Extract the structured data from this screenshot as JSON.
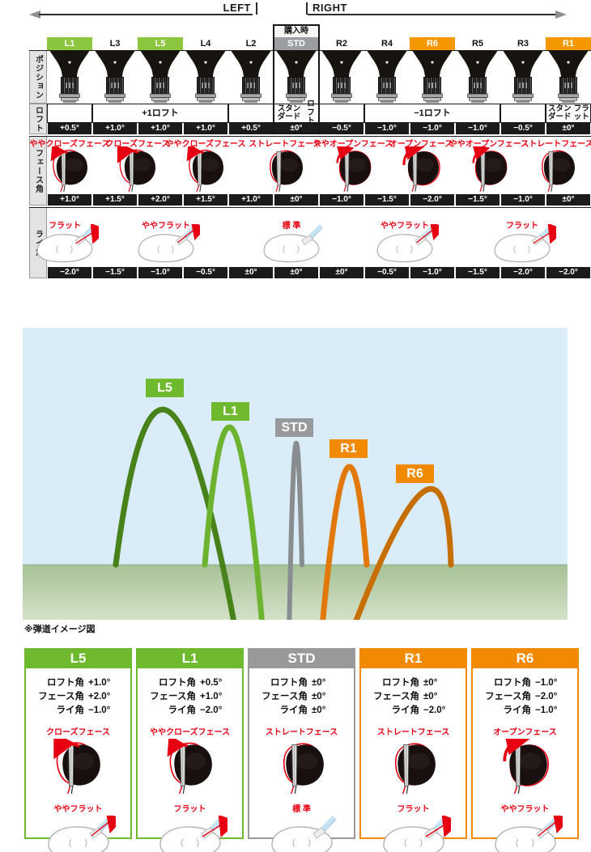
{
  "header": {
    "left_label": "LEFT",
    "right_label": "RIGHT",
    "purchase_label": "購入時"
  },
  "colors": {
    "green_badge": "#8cc63f",
    "orange_badge": "#f39800",
    "gray_badge": "#9b9da0",
    "green": "#6eb92d",
    "orange": "#f18a00",
    "gray": "#97999b",
    "red": "#e60012",
    "value_bar": "#1b1b1b",
    "sky": "#d9ecf7",
    "ground_top": "#a6c197",
    "ground_bottom": "#d4e1c8",
    "arc_green_dark": "#47821b",
    "arc_green": "#6cb32f",
    "arc_gray": "#8a8d90",
    "arc_orange": "#e1790a",
    "arc_orange_dark": "#c76e00"
  },
  "table": {
    "row_labels": {
      "position": "ポジション",
      "loft": "ロフト",
      "face": "フェース角",
      "lie": "ライ角"
    },
    "columns": [
      {
        "id": "L1",
        "highlight": "green",
        "loft": "+0.5°",
        "face": "+1.0°",
        "lie": "−2.0°"
      },
      {
        "id": "L3",
        "highlight": "none",
        "loft": "+1.0°",
        "face": "+1.5°",
        "lie": "−1.5°"
      },
      {
        "id": "L5",
        "highlight": "green",
        "loft": "+1.0°",
        "face": "+2.0°",
        "lie": "−1.0°"
      },
      {
        "id": "L4",
        "highlight": "none",
        "loft": "+1.0°",
        "face": "+1.5°",
        "lie": "−0.5°"
      },
      {
        "id": "L2",
        "highlight": "none",
        "loft": "+0.5°",
        "face": "+1.0°",
        "lie": "±0°"
      },
      {
        "id": "STD",
        "highlight": "gray",
        "loft": "±0°",
        "face": "±0°",
        "lie": "±0°"
      },
      {
        "id": "R2",
        "highlight": "none",
        "loft": "−0.5°",
        "face": "−1.0°",
        "lie": "±0°"
      },
      {
        "id": "R4",
        "highlight": "none",
        "loft": "−1.0°",
        "face": "−1.5°",
        "lie": "−0.5°"
      },
      {
        "id": "R6",
        "highlight": "orange",
        "loft": "−1.0°",
        "face": "−2.0°",
        "lie": "−1.0°"
      },
      {
        "id": "R5",
        "highlight": "none",
        "loft": "−1.0°",
        "face": "−1.5°",
        "lie": "−1.5°"
      },
      {
        "id": "R3",
        "highlight": "none",
        "loft": "−0.5°",
        "face": "−1.0°",
        "lie": "−2.0°"
      },
      {
        "id": "R1",
        "highlight": "orange",
        "loft": "±0°",
        "face": "±0°",
        "lie": "−2.0°"
      }
    ],
    "loft_groups": [
      {
        "label": "",
        "span": 1
      },
      {
        "label": "+1ロフト",
        "span": 3
      },
      {
        "label": "",
        "span": 1
      },
      {
        "label": "スタンダード\nロフト",
        "span": 1
      },
      {
        "label": "",
        "span": 1
      },
      {
        "label": "−1ロフト",
        "span": 3
      },
      {
        "label": "",
        "span": 1
      },
      {
        "label": "スタンダード\nフラット",
        "span": 1
      }
    ],
    "face_heads": [
      {
        "label": "ややクローズフェース",
        "variant": "slight-closed"
      },
      {
        "label": "クローズフェース",
        "variant": "closed"
      },
      {
        "label": "ややクローズフェース",
        "variant": "slight-closed"
      },
      {
        "label": "ストレートフェース",
        "variant": "straight"
      },
      {
        "label": "ややオープンフェース",
        "variant": "slight-open"
      },
      {
        "label": "オープンフェース",
        "variant": "open"
      },
      {
        "label": "ややオープンフェース",
        "variant": "slight-open"
      },
      {
        "label": "ストレートフェース",
        "variant": "straight"
      }
    ],
    "lie_heads": [
      {
        "label": "フラット",
        "variant": "flat"
      },
      {
        "label": "ややフラット",
        "variant": "slight-flat"
      },
      {
        "label": "標 準",
        "variant": "standard"
      },
      {
        "label": "ややフラット",
        "variant": "slight-flat"
      },
      {
        "label": "フラット",
        "variant": "flat"
      }
    ]
  },
  "trajectory": {
    "caption": "※弾道イメージ図",
    "arcs": [
      {
        "id": "L5",
        "color_key": "arc_green_dark",
        "badge_color_key": "green"
      },
      {
        "id": "L1",
        "color_key": "arc_green",
        "badge_color_key": "green"
      },
      {
        "id": "STD",
        "color_key": "arc_gray",
        "badge_color_key": "gray"
      },
      {
        "id": "R1",
        "color_key": "arc_orange",
        "badge_color_key": "orange"
      },
      {
        "id": "R6",
        "color_key": "arc_orange_dark",
        "badge_color_key": "orange"
      }
    ]
  },
  "cards": [
    {
      "id": "L5",
      "color_key": "green",
      "specs": [
        {
          "label": "ロフト角",
          "value": "+1.0°"
        },
        {
          "label": "フェース角",
          "value": "+2.0°"
        },
        {
          "label": "ライ角",
          "value": "−1.0°"
        }
      ],
      "face_label": "クローズフェース",
      "face_variant": "closed",
      "lie_label": "ややフラット",
      "lie_variant": "slight-flat"
    },
    {
      "id": "L1",
      "color_key": "green",
      "specs": [
        {
          "label": "ロフト角",
          "value": "+0.5°"
        },
        {
          "label": "フェース角",
          "value": "+1.0°"
        },
        {
          "label": "ライ角",
          "value": "−2.0°"
        }
      ],
      "face_label": "ややクローズフェース",
      "face_variant": "slight-closed",
      "lie_label": "フラット",
      "lie_variant": "flat"
    },
    {
      "id": "STD",
      "color_key": "gray",
      "specs": [
        {
          "label": "ロフト角",
          "value": "±0°"
        },
        {
          "label": "フェース角",
          "value": "±0°"
        },
        {
          "label": "ライ角",
          "value": "±0°"
        }
      ],
      "face_label": "ストレートフェース",
      "face_variant": "straight",
      "lie_label": "標 準",
      "lie_variant": "standard"
    },
    {
      "id": "R1",
      "color_key": "orange",
      "specs": [
        {
          "label": "ロフト角",
          "value": "±0°"
        },
        {
          "label": "フェース角",
          "value": "±0°"
        },
        {
          "label": "ライ角",
          "value": "−2.0°"
        }
      ],
      "face_label": "ストレートフェース",
      "face_variant": "straight",
      "lie_label": "フラット",
      "lie_variant": "flat"
    },
    {
      "id": "R6",
      "color_key": "orange",
      "specs": [
        {
          "label": "ロフト角",
          "value": "−1.0°"
        },
        {
          "label": "フェース角",
          "value": "−2.0°"
        },
        {
          "label": "ライ角",
          "value": "−1.0°"
        }
      ],
      "face_label": "オープンフェース",
      "face_variant": "open",
      "lie_label": "ややフラット",
      "lie_variant": "slight-flat"
    }
  ]
}
